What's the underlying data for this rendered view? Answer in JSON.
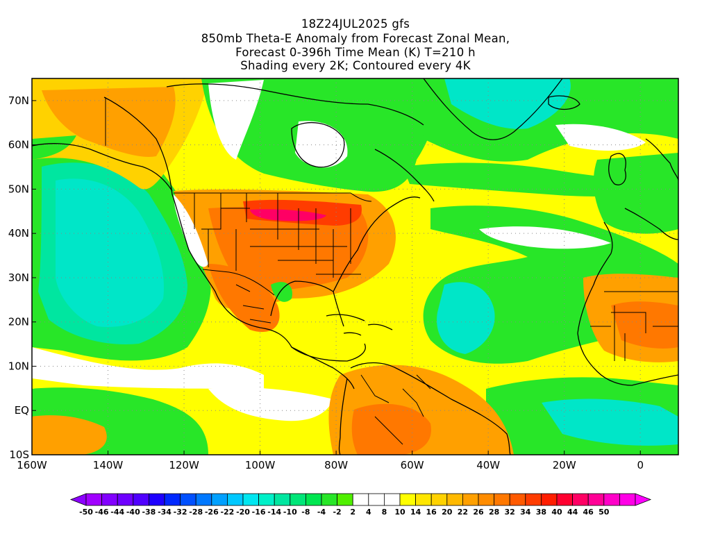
{
  "title_lines": [
    "18Z24JUL2025 gfs",
    "850mb Theta-E Anomaly from Forecast Zonal Mean,",
    "Forecast 0-396h Time Mean (K) T=210 h",
    "Shading every 2K; Contoured every 4K"
  ],
  "map": {
    "lon_range": [
      -160,
      10
    ],
    "lat_range": [
      -10,
      75
    ],
    "x_tick_labels": [
      "160W",
      "140W",
      "120W",
      "100W",
      "80W",
      "60W",
      "40W",
      "20W",
      "0"
    ],
    "x_tick_values": [
      -160,
      -140,
      -120,
      -100,
      -80,
      -60,
      -40,
      -20,
      0
    ],
    "y_tick_labels": [
      "10S",
      "EQ",
      "10N",
      "20N",
      "30N",
      "40N",
      "50N",
      "60N",
      "70N"
    ],
    "y_tick_values": [
      -10,
      0,
      10,
      20,
      30,
      40,
      50,
      60,
      70
    ],
    "gridlines": "dotted"
  },
  "colorbar": {
    "labels": [
      "-50",
      "-46",
      "-44",
      "-40",
      "-38",
      "-34",
      "-32",
      "-28",
      "-26",
      "-22",
      "-20",
      "-16",
      "-14",
      "-10",
      "-8",
      "-4",
      "-2",
      "2",
      "4",
      "8",
      "10",
      "14",
      "16",
      "20",
      "22",
      "26",
      "28",
      "32",
      "34",
      "38",
      "40",
      "44",
      "46",
      "50"
    ],
    "colors": [
      "#a000ff",
      "#8200ff",
      "#6e00ff",
      "#5000ff",
      "#1e00ff",
      "#0028ff",
      "#0050ff",
      "#0078ff",
      "#00a0ff",
      "#00c8ff",
      "#00e6f0",
      "#00f0c8",
      "#00e6a0",
      "#00e678",
      "#00e650",
      "#28e628",
      "#50f000",
      "#ffffff",
      "#ffffff",
      "#ffffff",
      "#ffff00",
      "#ffe600",
      "#ffd200",
      "#ffb900",
      "#ffa000",
      "#ff8c00",
      "#ff7800",
      "#ff5a00",
      "#ff3c00",
      "#ff1e00",
      "#ff0030",
      "#ff0064",
      "#ff0096",
      "#ff00c8",
      "#ff00e6"
    ],
    "left_arrow_color": "#8c00ff",
    "right_arrow_color": "#ff00ff"
  },
  "palette": {
    "teal": "#00e6c8",
    "green": "#28e628",
    "lime": "#50f000",
    "white": "#ffffff",
    "yellow": "#ffff00",
    "gold": "#ffd200",
    "orange": "#ffa000",
    "deep_orange": "#ff7800",
    "red": "#ff3c00",
    "magenta": "#ff0064",
    "coast": "#000000"
  }
}
